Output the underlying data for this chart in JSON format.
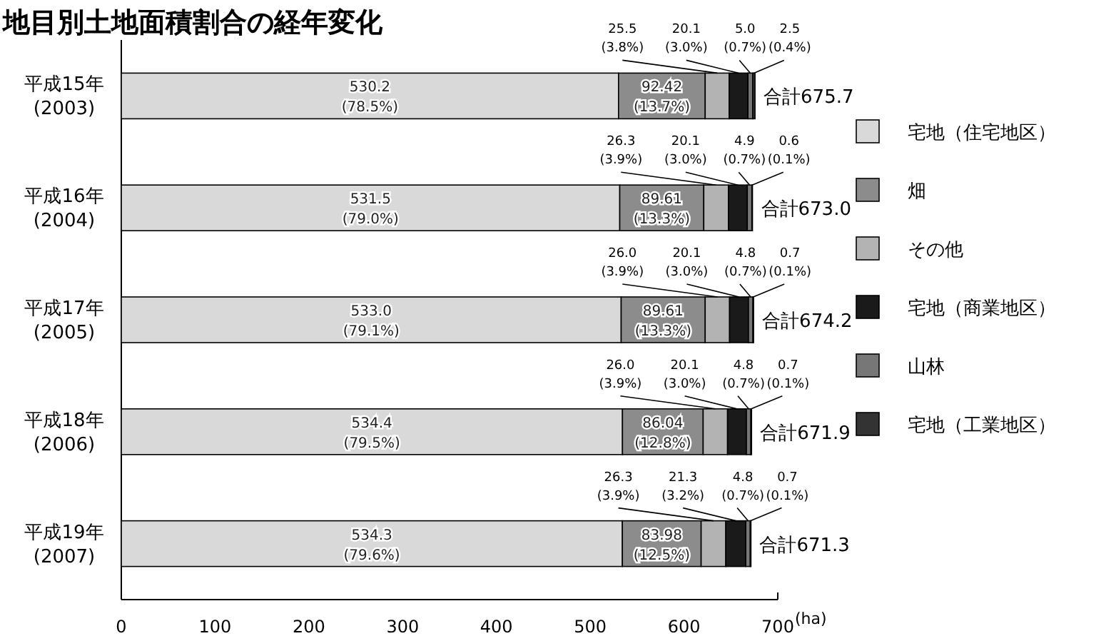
{
  "chart_data": {
    "type": "bar",
    "orientation": "horizontal",
    "stacked": true,
    "title": "地目別土地面積割合の経年変化",
    "xlabel": "(ha)",
    "categories": [
      "平成15年\n(2003)",
      "平成16年\n(2004)",
      "平成17年\n(2005)",
      "平成18年\n(2006)",
      "平成19年\n(2007)"
    ],
    "series": [
      {
        "name": "宅地（住宅地区）",
        "color": "#d9d9d9",
        "values": [
          530.2,
          531.5,
          533.0,
          534.4,
          534.3
        ],
        "value_labels": [
          "530.2\n(78.5%)",
          "531.5\n(79.0%)",
          "533.0\n(79.1%)",
          "534.4\n(79.5%)",
          "534.3\n(79.6%)"
        ]
      },
      {
        "name": "畑",
        "color": "#8c8c8c",
        "values": [
          92.42,
          89.61,
          89.61,
          86.04,
          83.98
        ],
        "value_labels": [
          "92.42\n(13.7%)",
          "89.61\n(13.3%)",
          "89.61\n(13.3%)",
          "86.04\n(12.8%)",
          "83.98\n(12.5%)"
        ]
      },
      {
        "name": "その他",
        "color": "#b3b3b3",
        "values": [
          25.5,
          26.3,
          26.0,
          26.0,
          26.3
        ],
        "value_labels": [
          "25.5\n(3.8%)",
          "26.3\n(3.9%)",
          "26.0\n(3.9%)",
          "26.0\n(3.9%)",
          "26.3\n(3.9%)"
        ]
      },
      {
        "name": "宅地（商業地区）",
        "color": "#1a1a1a",
        "values": [
          20.1,
          20.1,
          20.1,
          20.1,
          21.3
        ],
        "value_labels": [
          "20.1\n(3.0%)",
          "20.1\n(3.0%)",
          "20.1\n(3.0%)",
          "20.1\n(3.0%)",
          "21.3\n(3.2%)"
        ]
      },
      {
        "name": "山林",
        "color": "#777777",
        "values": [
          5.0,
          4.9,
          4.8,
          4.8,
          4.8
        ],
        "value_labels": [
          "5.0\n(0.7%)",
          "4.9\n(0.7%)",
          "4.8\n(0.7%)",
          "4.8\n(0.7%)",
          "4.8\n(0.7%)"
        ]
      },
      {
        "name": "宅地（工業地区）",
        "color": "#333333",
        "values": [
          2.5,
          0.6,
          0.7,
          0.7,
          0.7
        ],
        "value_labels": [
          "2.5\n(0.4%)",
          "0.6\n(0.1%)",
          "0.7\n(0.1%)",
          "0.7\n(0.1%)",
          "0.7\n(0.1%)"
        ]
      }
    ],
    "totals": [
      "合計675.7",
      "合計673.0",
      "合計674.2",
      "合計671.9",
      "合計671.3"
    ],
    "xlim": [
      0,
      700
    ],
    "xticks": [
      0,
      100,
      200,
      300,
      400,
      500,
      600,
      700
    ],
    "grid": false,
    "legend": "right"
  }
}
